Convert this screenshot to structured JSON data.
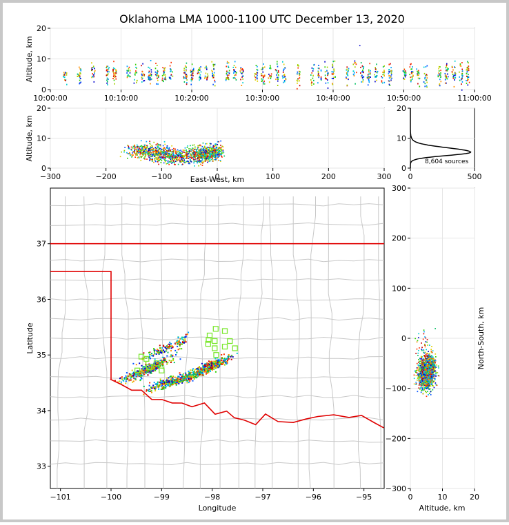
{
  "figure": {
    "title": "Oklahoma LMA 1000-1100 UTC December 13, 2020",
    "border_color": "#c8c8c8"
  },
  "chart_data": [
    {
      "id": "time-altitude",
      "type": "scatter",
      "ylabel": "Altitude, km",
      "xlabel": "",
      "xlim": [
        "10:00:00",
        "11:00:00"
      ],
      "ylim": [
        0,
        20
      ],
      "xticks": [
        "10:00:00",
        "10:10:00",
        "10:20:00",
        "10:30:00",
        "10:40:00",
        "10:50:00",
        "11:00:00"
      ],
      "yticks": [
        "0",
        "10",
        "20"
      ],
      "grid": true,
      "activity_minutes": [
        2,
        4,
        6,
        8,
        9,
        11,
        12,
        13,
        14,
        15,
        16,
        17,
        19,
        20,
        21,
        22,
        23,
        25,
        26,
        27,
        29,
        30,
        31,
        32,
        33,
        35,
        37,
        38,
        39,
        40,
        42,
        43,
        44,
        45,
        46,
        47,
        48,
        50,
        51,
        52,
        53,
        55,
        56,
        57,
        58,
        59
      ]
    },
    {
      "id": "ew-altitude",
      "type": "scatter",
      "xlabel": "East-West, km",
      "ylabel": "Altitude, km",
      "xlim": [
        -300,
        300
      ],
      "ylim": [
        0,
        20
      ],
      "xticks": [
        "−300",
        "−200",
        "−100",
        "0",
        "100",
        "200",
        "300"
      ],
      "yticks": [
        "0",
        "10",
        "20"
      ],
      "grid": true
    },
    {
      "id": "altitude-histogram",
      "type": "line",
      "xlim": [
        0,
        500
      ],
      "ylim": [
        0,
        20
      ],
      "xticks": [
        "0",
        "500"
      ],
      "yticks": [
        "0",
        "10",
        "20"
      ],
      "annotation": "8,604 sources",
      "grid": true
    },
    {
      "id": "plan-view",
      "type": "scatter",
      "xlabel": "Longitude",
      "ylabel": "Latitude",
      "xlim": [
        -101.2,
        -94.6
      ],
      "ylim": [
        32.6,
        38.0
      ],
      "xticks": [
        "−101",
        "−100",
        "−99",
        "−98",
        "−97",
        "−96",
        "−95"
      ],
      "yticks": [
        "33",
        "34",
        "35",
        "36",
        "37"
      ],
      "state_border_color": "#e00000",
      "county_line_color": "#c8c8c8",
      "station_color": "#7ce830",
      "stations": [
        [
          -97.93,
          35.47
        ],
        [
          -97.75,
          35.43
        ],
        [
          -98.05,
          35.35
        ],
        [
          -98.07,
          35.27
        ],
        [
          -97.95,
          35.25
        ],
        [
          -97.65,
          35.25
        ],
        [
          -98.08,
          35.2
        ],
        [
          -97.55,
          35.12
        ],
        [
          -97.75,
          35.15
        ],
        [
          -97.95,
          35.12
        ],
        [
          -97.92,
          35.0
        ],
        [
          -99.4,
          34.97
        ],
        [
          -99.3,
          34.93
        ],
        [
          -99.1,
          34.85
        ],
        [
          -99.25,
          34.78
        ],
        [
          -99.0,
          34.72
        ],
        [
          -99.48,
          34.72
        ]
      ]
    },
    {
      "id": "ns-altitude",
      "type": "scatter",
      "xlabel": "Altitude, km",
      "ylabel": "North-South, km",
      "xlim": [
        0,
        20
      ],
      "ylim": [
        -300,
        300
      ],
      "xticks": [
        "0",
        "10",
        "20"
      ],
      "yticks": [
        "−300",
        "−200",
        "−100",
        "0",
        "100",
        "200",
        "300"
      ],
      "grid": true
    }
  ]
}
